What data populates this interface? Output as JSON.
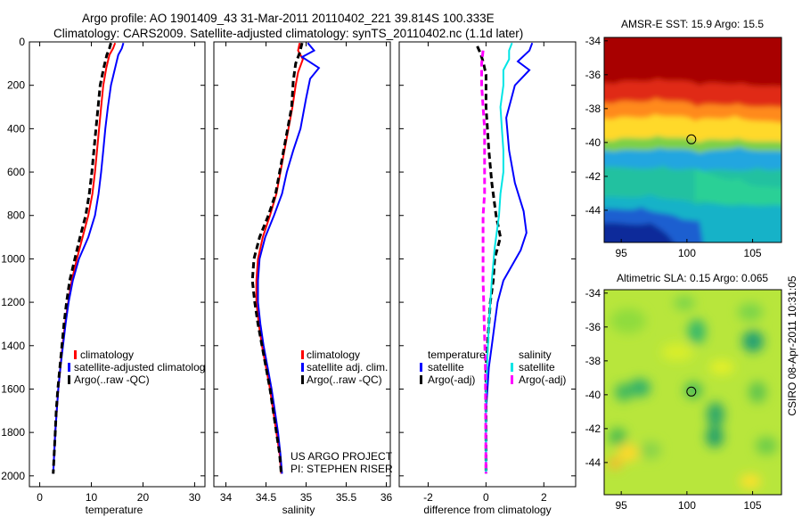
{
  "header": {
    "line1": "Argo profile: AO 1901409_43 31-Mar-2011 20110402_221 39.814S 100.333E",
    "line2": "Climatology: CARS2009. Satellite-adjusted climatology: synTS_20110402.nc (1.1d later)"
  },
  "colors": {
    "climatology": "#ff0000",
    "satellite": "#0000ff",
    "argo": "#000000",
    "salinity_satellite": "#00e5e5",
    "salinity_argo": "#ff00ff"
  },
  "chart_data": [
    {
      "type": "line",
      "xlabel": "temperature",
      "ylabel": "",
      "xlim": [
        -2,
        32
      ],
      "ylim": [
        2050,
        0
      ],
      "xticks": [
        "0",
        "10",
        "20",
        "30"
      ],
      "yticks": [
        "0",
        "200",
        "400",
        "600",
        "800",
        "1000",
        "1200",
        "1400",
        "1600",
        "1800",
        "2000"
      ],
      "legend": {
        "position": "lower-right",
        "entries": [
          "climatology",
          "satellite-adjusted climatolog",
          "Argo(..raw -QC)"
        ]
      },
      "series": [
        {
          "name": "climatology",
          "style": "solid",
          "color": "#ff0000",
          "points": [
            [
              14.6,
              5
            ],
            [
              14.2,
              30
            ],
            [
              13.5,
              60
            ],
            [
              12.9,
              120
            ],
            [
              12.3,
              200
            ],
            [
              11.9,
              300
            ],
            [
              11.5,
              400
            ],
            [
              11.1,
              500
            ],
            [
              10.7,
              600
            ],
            [
              10.2,
              700
            ],
            [
              9.4,
              800
            ],
            [
              8.3,
              900
            ],
            [
              7.2,
              1000
            ],
            [
              6.2,
              1100
            ],
            [
              5.5,
              1200
            ],
            [
              4.9,
              1300
            ],
            [
              4.4,
              1400
            ],
            [
              4.0,
              1500
            ],
            [
              3.6,
              1600
            ],
            [
              3.3,
              1700
            ],
            [
              3.0,
              1800
            ],
            [
              2.8,
              1900
            ],
            [
              2.6,
              1990
            ]
          ]
        },
        {
          "name": "satellite-adjusted climatology",
          "style": "solid",
          "color": "#0000ff",
          "points": [
            [
              16.2,
              5
            ],
            [
              15.9,
              30
            ],
            [
              15.2,
              60
            ],
            [
              14.6,
              120
            ],
            [
              13.8,
              200
            ],
            [
              13.2,
              300
            ],
            [
              12.7,
              400
            ],
            [
              12.3,
              500
            ],
            [
              11.9,
              600
            ],
            [
              11.4,
              700
            ],
            [
              10.7,
              800
            ],
            [
              9.4,
              900
            ],
            [
              7.6,
              1000
            ],
            [
              6.4,
              1100
            ],
            [
              5.6,
              1200
            ],
            [
              5.0,
              1300
            ],
            [
              4.5,
              1400
            ],
            [
              4.0,
              1500
            ],
            [
              3.6,
              1600
            ],
            [
              3.3,
              1700
            ],
            [
              3.0,
              1800
            ],
            [
              2.8,
              1900
            ],
            [
              2.6,
              1990
            ]
          ]
        },
        {
          "name": "Argo(..raw -QC)",
          "style": "dashed",
          "color": "#000000",
          "points": [
            [
              13.8,
              5
            ],
            [
              13.5,
              30
            ],
            [
              13.0,
              60
            ],
            [
              12.4,
              120
            ],
            [
              11.7,
              200
            ],
            [
              11.3,
              300
            ],
            [
              10.9,
              400
            ],
            [
              10.5,
              500
            ],
            [
              10.1,
              600
            ],
            [
              9.6,
              700
            ],
            [
              8.9,
              800
            ],
            [
              7.8,
              900
            ],
            [
              6.8,
              1000
            ],
            [
              5.8,
              1100
            ],
            [
              5.2,
              1200
            ],
            [
              4.7,
              1300
            ],
            [
              4.3,
              1400
            ],
            [
              3.9,
              1500
            ],
            [
              3.5,
              1600
            ],
            [
              3.2,
              1700
            ],
            [
              3.0,
              1800
            ],
            [
              2.8,
              1900
            ],
            [
              2.6,
              1990
            ]
          ]
        }
      ]
    },
    {
      "type": "line",
      "xlabel": "salinity",
      "ylabel": "",
      "xlim": [
        33.85,
        36.05
      ],
      "ylim": [
        2050,
        0
      ],
      "xticks": [
        "34",
        "34.5",
        "35",
        "35.5",
        "36"
      ],
      "legend": {
        "position": "lower-right",
        "entries": [
          "climatology",
          "satellite adj. clim.",
          "Argo(..raw -QC)"
        ]
      },
      "annotation": [
        "US ARGO PROJECT",
        "PI: STEPHEN RISER"
      ],
      "series": [
        {
          "name": "climatology",
          "style": "solid",
          "color": "#ff0000",
          "points": [
            [
              34.92,
              5
            ],
            [
              34.9,
              40
            ],
            [
              34.96,
              80
            ],
            [
              34.9,
              140
            ],
            [
              34.87,
              200
            ],
            [
              34.83,
              300
            ],
            [
              34.78,
              400
            ],
            [
              34.73,
              500
            ],
            [
              34.68,
              600
            ],
            [
              34.63,
              700
            ],
            [
              34.55,
              800
            ],
            [
              34.46,
              900
            ],
            [
              34.4,
              1000
            ],
            [
              34.38,
              1100
            ],
            [
              34.38,
              1200
            ],
            [
              34.41,
              1300
            ],
            [
              34.45,
              1400
            ],
            [
              34.5,
              1500
            ],
            [
              34.55,
              1600
            ],
            [
              34.59,
              1700
            ],
            [
              34.63,
              1800
            ],
            [
              34.67,
              1900
            ],
            [
              34.69,
              1990
            ]
          ]
        },
        {
          "name": "satellite adj. clim.",
          "style": "solid",
          "color": "#0000ff",
          "points": [
            [
              35.02,
              5
            ],
            [
              35.1,
              40
            ],
            [
              34.95,
              70
            ],
            [
              35.16,
              120
            ],
            [
              35.05,
              170
            ],
            [
              35.0,
              260
            ],
            [
              34.93,
              400
            ],
            [
              34.84,
              500
            ],
            [
              34.76,
              600
            ],
            [
              34.7,
              700
            ],
            [
              34.6,
              800
            ],
            [
              34.49,
              900
            ],
            [
              34.42,
              1000
            ],
            [
              34.4,
              1100
            ],
            [
              34.4,
              1200
            ],
            [
              34.43,
              1300
            ],
            [
              34.47,
              1400
            ],
            [
              34.52,
              1500
            ],
            [
              34.57,
              1600
            ],
            [
              34.61,
              1700
            ],
            [
              34.65,
              1800
            ],
            [
              34.68,
              1900
            ],
            [
              34.7,
              1990
            ]
          ]
        },
        {
          "name": "Argo(..raw -QC)",
          "style": "dashed",
          "color": "#000000",
          "points": [
            [
              34.95,
              5
            ],
            [
              34.92,
              50
            ],
            [
              34.87,
              100
            ],
            [
              34.84,
              180
            ],
            [
              34.82,
              300
            ],
            [
              34.77,
              400
            ],
            [
              34.72,
              500
            ],
            [
              34.67,
              600
            ],
            [
              34.62,
              700
            ],
            [
              34.53,
              800
            ],
            [
              34.42,
              900
            ],
            [
              34.35,
              1000
            ],
            [
              34.33,
              1100
            ],
            [
              34.36,
              1200
            ],
            [
              34.4,
              1300
            ],
            [
              34.45,
              1400
            ],
            [
              34.5,
              1500
            ],
            [
              34.55,
              1600
            ],
            [
              34.59,
              1700
            ],
            [
              34.63,
              1800
            ],
            [
              34.67,
              1900
            ],
            [
              34.69,
              1990
            ]
          ]
        }
      ]
    },
    {
      "type": "line",
      "xlabel": "difference from climatology",
      "ylabel": "",
      "xlim": [
        -3,
        3.1
      ],
      "ylim": [
        2050,
        0
      ],
      "xticks": [
        "-2",
        "0",
        "2"
      ],
      "legend": {
        "position": "lower",
        "entries": [
          "temperature",
          "satellite",
          "Argo(-adj)",
          "salinity",
          "satellite",
          "Argo(-adj)"
        ]
      },
      "series": [
        {
          "name": "temperature satellite",
          "style": "solid",
          "color": "#0000ff",
          "points": [
            [
              1.6,
              5
            ],
            [
              1.5,
              40
            ],
            [
              1.1,
              90
            ],
            [
              1.5,
              130
            ],
            [
              1.0,
              200
            ],
            [
              0.7,
              350
            ],
            [
              0.8,
              500
            ],
            [
              1.0,
              650
            ],
            [
              1.3,
              780
            ],
            [
              1.4,
              880
            ],
            [
              1.2,
              960
            ],
            [
              0.6,
              1100
            ],
            [
              0.4,
              1200
            ],
            [
              0.3,
              1300
            ],
            [
              0.2,
              1400
            ],
            [
              0.1,
              1500
            ],
            [
              0.05,
              1600
            ],
            [
              0,
              1700
            ],
            [
              0,
              1800
            ],
            [
              0,
              1900
            ],
            [
              0,
              1990
            ]
          ]
        },
        {
          "name": "temperature Argo(-adj)",
          "style": "dashed",
          "color": "#000000",
          "points": [
            [
              -0.3,
              20
            ],
            [
              -0.2,
              50
            ],
            [
              -0.1,
              90
            ],
            [
              0,
              150
            ],
            [
              0,
              300
            ],
            [
              0.1,
              500
            ],
            [
              0.2,
              650
            ],
            [
              0.35,
              800
            ],
            [
              0.5,
              900
            ],
            [
              0.3,
              1000
            ],
            [
              0.25,
              1100
            ],
            [
              0.15,
              1200
            ],
            [
              0.1,
              1300
            ],
            [
              0.05,
              1400
            ],
            [
              0,
              1500
            ],
            [
              0,
              1990
            ]
          ]
        },
        {
          "name": "salinity satellite",
          "style": "solid",
          "color": "#00e5e5",
          "points": [
            [
              0.9,
              5
            ],
            [
              0.8,
              40
            ],
            [
              0.8,
              80
            ],
            [
              0.6,
              130
            ],
            [
              0.6,
              200
            ],
            [
              0.5,
              300
            ],
            [
              0.55,
              400
            ],
            [
              0.6,
              500
            ],
            [
              0.6,
              600
            ],
            [
              0.5,
              700
            ],
            [
              0.45,
              800
            ],
            [
              0.3,
              950
            ],
            [
              0.2,
              1100
            ],
            [
              0.1,
              1300
            ],
            [
              0.05,
              1450
            ],
            [
              0,
              1600
            ],
            [
              0,
              1800
            ],
            [
              0,
              1990
            ]
          ]
        },
        {
          "name": "salinity Argo(-adj)",
          "style": "dashed",
          "color": "#ff00ff",
          "points": [
            [
              -0.1,
              40
            ],
            [
              -0.15,
              100
            ],
            [
              -0.15,
              200
            ],
            [
              -0.1,
              300
            ],
            [
              -0.05,
              400
            ],
            [
              -0.05,
              500
            ],
            [
              -0.05,
              600
            ],
            [
              -0.05,
              700
            ],
            [
              -0.1,
              800
            ],
            [
              -0.1,
              900
            ],
            [
              -0.1,
              1000
            ],
            [
              -0.1,
              1100
            ],
            [
              -0.08,
              1200
            ],
            [
              -0.06,
              1300
            ],
            [
              -0.04,
              1400
            ],
            [
              -0.02,
              1500
            ],
            [
              0,
              1990
            ]
          ]
        }
      ]
    },
    {
      "type": "heatmap",
      "title": "AMSR-E SST: 15.9 Argo: 15.5",
      "xticks": [
        "95",
        "100",
        "105"
      ],
      "yticks": [
        "-34",
        "-36",
        "-38",
        "-40",
        "-42",
        "-44"
      ],
      "xlim": [
        93.7,
        107.2
      ],
      "ylim": [
        -45.9,
        -33.8
      ],
      "marker": {
        "lon": 100.333,
        "lat": -39.814
      }
    },
    {
      "type": "heatmap",
      "title": "Altimetric SLA: 0.15 Argo: 0.065",
      "xticks": [
        "95",
        "100",
        "105"
      ],
      "yticks": [
        "-34",
        "-36",
        "-38",
        "-40",
        "-42",
        "-44"
      ],
      "xlim": [
        93.7,
        107.2
      ],
      "ylim": [
        -45.9,
        -33.8
      ],
      "marker": {
        "lon": 100.333,
        "lat": -39.814
      }
    }
  ],
  "legend_labels": {
    "p1": [
      "climatology",
      "satellite-adjusted climatolog",
      "Argo(..raw -QC)"
    ],
    "p2": [
      "climatology",
      "satellite adj. clim.",
      "Argo(..raw -QC)"
    ],
    "p3_temp_header": "temperature",
    "p3_sal_header": "salinity",
    "p3_temp": [
      "satellite",
      "Argo(-adj)"
    ],
    "p3_sal": [
      "satellite",
      "Argo(-adj)"
    ]
  },
  "footer_stamp": "CSIRO 08-Apr-2011 10:31:05"
}
